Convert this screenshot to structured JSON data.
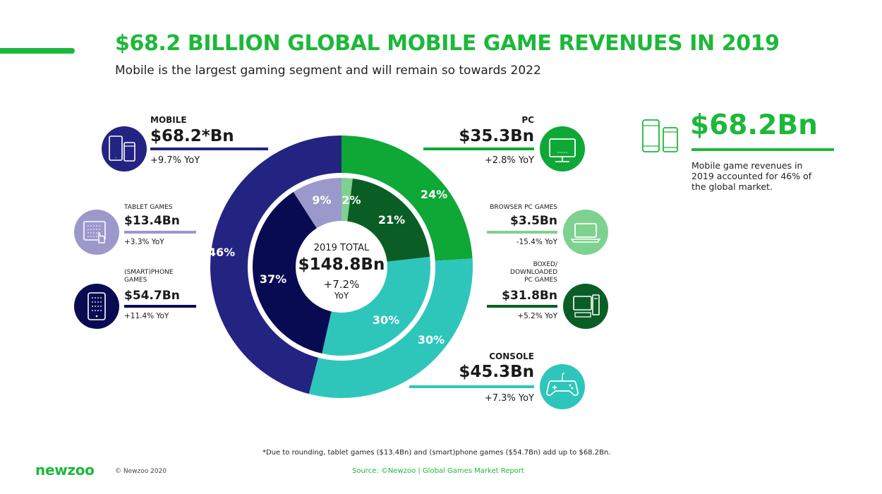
{
  "title": "$68.2 BILLION GLOBAL MOBILE GAME REVENUES IN 2019",
  "subtitle": "Mobile is the largest gaming segment and will remain so towards 2022",
  "center": {
    "label": "2019 TOTAL",
    "value": "$148.8Bn",
    "change": "+7.2%",
    "unit": "YoY"
  },
  "segments": {
    "mobile": {
      "name": "MOBILE",
      "value": "$68.2*Bn",
      "yoy": "+9.7% YoY"
    },
    "tablet": {
      "name": "TABLET GAMES",
      "value": "$13.4Bn",
      "yoy": "+3.3% YoY"
    },
    "phone": {
      "name_line1": "(SMART)PHONE",
      "name_line2": "GAMES",
      "value": "$54.7Bn",
      "yoy": "+11.4% YoY"
    },
    "pc": {
      "name": "PC",
      "value": "$35.3Bn",
      "yoy": "+2.8% YoY"
    },
    "browser": {
      "name": "BROWSER PC GAMES",
      "value": "$3.5Bn",
      "yoy": "-15.4% YoY"
    },
    "boxed": {
      "name_line1": "BOXED/",
      "name_line2": "DOWNLOADED",
      "name_line3": "PC GAMES",
      "value": "$31.8Bn",
      "yoy": "+5.2% YoY"
    },
    "console": {
      "name": "CONSOLE",
      "value": "$45.3Bn",
      "yoy": "+7.3% YoY"
    }
  },
  "callout": {
    "value": "$68.2Bn",
    "text": "Mobile game revenues in 2019 accounted for 46% of the global market."
  },
  "footnote": "*Due to rounding, tablet games ($13.4Bn) and (smart)phone games ($54.7Bn) add up to $68.2Bn.",
  "source": "Source: ©Newzoo | Global Games Market Report",
  "brand": "newzoo",
  "copyright": "© Newzoo 2020",
  "colors": {
    "accent": "#1db83a",
    "mobile": "#232482",
    "tablet": "#9b98cc",
    "phone": "#090b52",
    "pc": "#0ea836",
    "browser": "#7fd18f",
    "boxed": "#0a5e25",
    "console": "#2ec6bb"
  },
  "icons": [
    "mobile-devices-icon",
    "tablet-touch-icon",
    "smartphone-icon",
    "monitor-icon",
    "laptop-icon",
    "desktop-pc-icon",
    "gamepad-icon",
    "mobile-devices-outline-icon"
  ],
  "chart_data": [
    {
      "type": "pie",
      "ring": "outer",
      "categories": [
        "PC",
        "Console",
        "Mobile"
      ],
      "values": [
        24,
        30,
        46
      ],
      "labels": [
        "24%",
        "30%",
        "46%"
      ]
    },
    {
      "type": "pie",
      "ring": "inner",
      "categories": [
        "Browser PC Games",
        "Boxed/Downloaded PC Games",
        "Console",
        "(Smart)phone Games",
        "Tablet Games"
      ],
      "values": [
        2,
        21,
        30,
        37,
        9
      ],
      "labels": [
        "2%",
        "21%",
        "30%",
        "37%",
        "9%"
      ]
    }
  ]
}
